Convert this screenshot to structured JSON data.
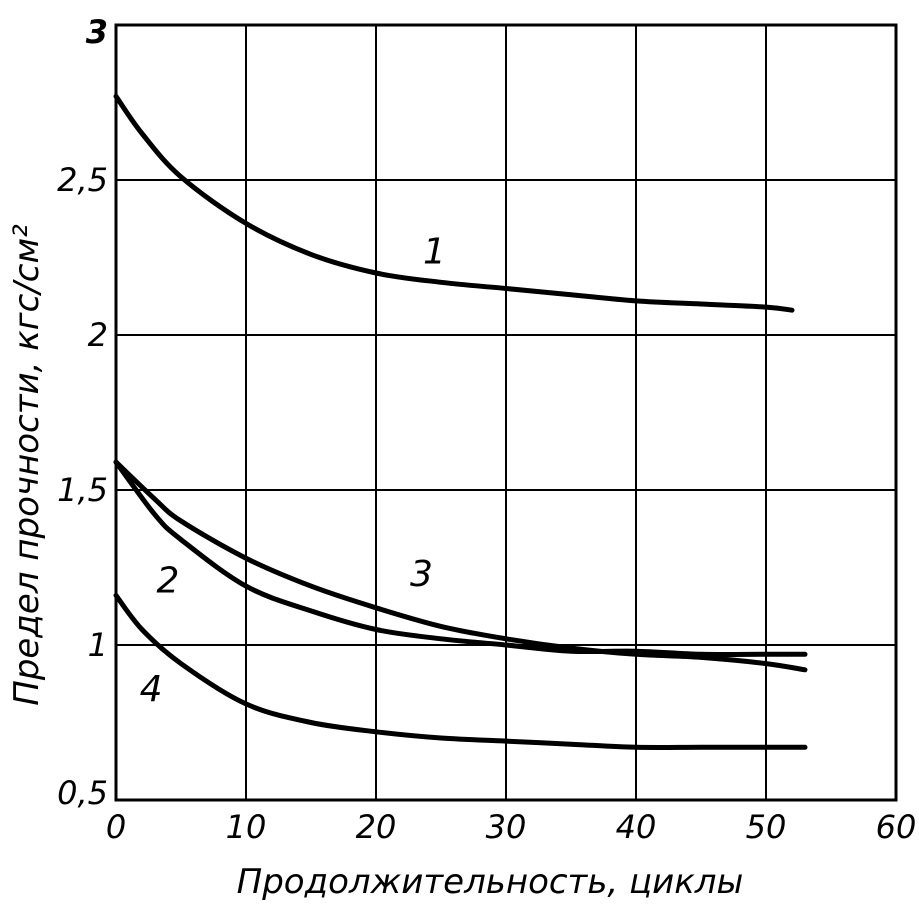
{
  "chart_data": {
    "type": "line",
    "title": "",
    "xlabel": "Продолжительность, циклы",
    "ylabel": "Предел прочности, кгс/см²",
    "xlim": [
      0,
      60
    ],
    "ylim": [
      0.5,
      3
    ],
    "grid": true,
    "x_ticks": [
      "0",
      "10",
      "20",
      "30",
      "40",
      "50",
      "60"
    ],
    "y_ticks": [
      "0,5",
      "1",
      "1,5",
      "2",
      "2,5",
      "3"
    ],
    "series": [
      {
        "name": "1",
        "x": [
          0,
          2,
          5,
          10,
          15,
          20,
          25,
          30,
          35,
          40,
          45,
          50,
          52
        ],
        "y": [
          2.77,
          2.65,
          2.51,
          2.36,
          2.26,
          2.2,
          2.17,
          2.15,
          2.13,
          2.11,
          2.1,
          2.09,
          2.08
        ]
      },
      {
        "name": "2",
        "x": [
          0,
          3,
          5,
          10,
          15,
          20,
          25,
          30,
          35,
          40,
          45,
          50,
          53
        ],
        "y": [
          1.59,
          1.42,
          1.34,
          1.19,
          1.11,
          1.05,
          1.02,
          1.0,
          0.98,
          0.98,
          0.97,
          0.97,
          0.97
        ]
      },
      {
        "name": "3",
        "x": [
          0,
          3,
          5,
          10,
          15,
          20,
          25,
          30,
          35,
          40,
          45,
          50,
          53
        ],
        "y": [
          1.59,
          1.47,
          1.4,
          1.28,
          1.19,
          1.12,
          1.06,
          1.02,
          0.99,
          0.97,
          0.96,
          0.94,
          0.92
        ]
      },
      {
        "name": "4",
        "x": [
          0,
          2,
          5,
          10,
          15,
          20,
          25,
          30,
          35,
          40,
          45,
          50,
          53
        ],
        "y": [
          1.16,
          1.05,
          0.94,
          0.81,
          0.75,
          0.72,
          0.7,
          0.69,
          0.68,
          0.67,
          0.67,
          0.67,
          0.67
        ]
      }
    ]
  }
}
